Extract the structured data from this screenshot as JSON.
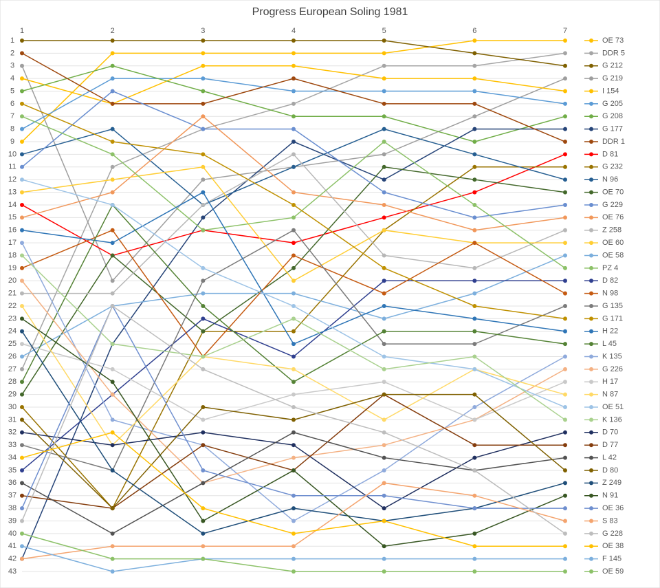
{
  "chart_data": {
    "type": "line",
    "title": "Progress European Soling 1981",
    "categories": [
      "1",
      "2",
      "3",
      "4",
      "5",
      "6",
      "7"
    ],
    "ylim": [
      1,
      43
    ],
    "y_reversed": true,
    "grid": true,
    "legend": "right",
    "yticks": [
      1,
      2,
      3,
      4,
      5,
      6,
      7,
      8,
      9,
      10,
      11,
      12,
      13,
      14,
      15,
      16,
      17,
      18,
      19,
      20,
      21,
      22,
      23,
      24,
      25,
      26,
      27,
      28,
      29,
      30,
      31,
      32,
      33,
      34,
      35,
      36,
      37,
      38,
      39,
      40,
      41,
      42,
      43
    ],
    "series": [
      {
        "name": "OE 73",
        "color": "#FFC000",
        "values": [
          9,
          2,
          2,
          2,
          2,
          1,
          1
        ]
      },
      {
        "name": "DDR 5",
        "color": "#A5A5A5",
        "values": [
          27,
          11,
          8,
          6,
          3,
          3,
          2
        ]
      },
      {
        "name": "G 212",
        "color": "#7F6000",
        "values": [
          1,
          1,
          1,
          1,
          1,
          2,
          3
        ]
      },
      {
        "name": "G 219",
        "color": "#9E9E9E",
        "values": [
          3,
          20,
          12,
          11,
          10,
          7,
          4
        ]
      },
      {
        "name": "I 154",
        "color": "#FFC000",
        "values": [
          4,
          6,
          3,
          3,
          4,
          4,
          5
        ]
      },
      {
        "name": "G 205",
        "color": "#5B9BD5",
        "values": [
          8,
          4,
          4,
          5,
          5,
          5,
          6
        ]
      },
      {
        "name": "G 208",
        "color": "#70AD47",
        "values": [
          5,
          3,
          5,
          7,
          7,
          9,
          7
        ]
      },
      {
        "name": "G 177",
        "color": "#264478",
        "values": [
          42,
          25,
          15,
          9,
          12,
          8,
          8
        ]
      },
      {
        "name": "DDR 1",
        "color": "#9E480E",
        "values": [
          2,
          6,
          6,
          4,
          6,
          6,
          9
        ]
      },
      {
        "name": "D 81",
        "color": "#FF0000",
        "values": [
          14,
          18,
          16,
          17,
          15,
          13,
          10
        ]
      },
      {
        "name": "G 232",
        "color": "#997300",
        "values": [
          30,
          38,
          24,
          24,
          16,
          11,
          11
        ]
      },
      {
        "name": "N 96",
        "color": "#255E91",
        "values": [
          10,
          8,
          14,
          11,
          8,
          10,
          12
        ]
      },
      {
        "name": "OE 70",
        "color": "#43682B",
        "values": [
          29,
          18,
          24,
          19,
          11,
          12,
          13
        ]
      },
      {
        "name": "G 229",
        "color": "#698ED0",
        "values": [
          11,
          5,
          8,
          8,
          13,
          15,
          14
        ]
      },
      {
        "name": "OE 76",
        "color": "#F1975A",
        "values": [
          15,
          13,
          7,
          13,
          14,
          16,
          15
        ]
      },
      {
        "name": "Z 258",
        "color": "#B7B7B7",
        "values": [
          21,
          21,
          14,
          10,
          18,
          19,
          16
        ]
      },
      {
        "name": "OE 60",
        "color": "#FFCD33",
        "values": [
          13,
          12,
          11,
          20,
          16,
          17,
          17
        ]
      },
      {
        "name": "OE 58",
        "color": "#7CAFDD",
        "values": [
          26,
          22,
          21,
          21,
          23,
          21,
          18
        ]
      },
      {
        "name": "PZ 4",
        "color": "#8CC168",
        "values": [
          7,
          10,
          16,
          15,
          9,
          14,
          19
        ]
      },
      {
        "name": "D 82",
        "color": "#2F3F8F",
        "values": [
          35,
          29,
          23,
          26,
          20,
          20,
          20
        ]
      },
      {
        "name": "N 98",
        "color": "#C55A11",
        "values": [
          19,
          16,
          26,
          18,
          21,
          17,
          21
        ]
      },
      {
        "name": "G 135",
        "color": "#7B7B7B",
        "values": [
          33,
          35,
          20,
          16,
          25,
          25,
          22
        ]
      },
      {
        "name": "G 171",
        "color": "#BF9000",
        "values": [
          6,
          9,
          10,
          14,
          19,
          22,
          23
        ]
      },
      {
        "name": "H 22",
        "color": "#2E75B6",
        "values": [
          16,
          17,
          13,
          25,
          22,
          23,
          24
        ]
      },
      {
        "name": "L 45",
        "color": "#548235",
        "values": [
          28,
          14,
          22,
          28,
          24,
          24,
          25
        ]
      },
      {
        "name": "K 135",
        "color": "#8FAADC",
        "values": [
          17,
          31,
          33,
          39,
          35,
          30,
          26
        ]
      },
      {
        "name": "G 226",
        "color": "#F4B183",
        "values": [
          20,
          29,
          36,
          34,
          33,
          31,
          27
        ]
      },
      {
        "name": "H 17",
        "color": "#C9C9C9",
        "values": [
          25,
          27,
          31,
          29,
          28,
          31,
          28
        ]
      },
      {
        "name": "N 87",
        "color": "#FFD966",
        "values": [
          22,
          33,
          26,
          27,
          31,
          27,
          29
        ]
      },
      {
        "name": "OE 51",
        "color": "#9DC3E6",
        "values": [
          12,
          14,
          19,
          22,
          26,
          27,
          30
        ]
      },
      {
        "name": "K 136",
        "color": "#A9D18E",
        "values": [
          18,
          25,
          26,
          23,
          27,
          26,
          31
        ]
      },
      {
        "name": "D 70",
        "color": "#1F2F5F",
        "values": [
          32,
          33,
          32,
          33,
          38,
          34,
          32
        ]
      },
      {
        "name": "D 77",
        "color": "#843C0C",
        "values": [
          37,
          38,
          33,
          35,
          29,
          33,
          33
        ]
      },
      {
        "name": "L 42",
        "color": "#525252",
        "values": [
          36,
          40,
          36,
          32,
          34,
          35,
          34
        ]
      },
      {
        "name": "D 80",
        "color": "#7F6000",
        "values": [
          31,
          38,
          30,
          31,
          29,
          29,
          35
        ]
      },
      {
        "name": "Z 249",
        "color": "#1F4E79",
        "values": [
          24,
          35,
          40,
          38,
          39,
          38,
          36
        ]
      },
      {
        "name": "N 91",
        "color": "#385723",
        "values": [
          23,
          28,
          39,
          35,
          41,
          40,
          37
        ]
      },
      {
        "name": "OE 36",
        "color": "#6F8FCF",
        "values": [
          38,
          22,
          35,
          37,
          37,
          38,
          38
        ]
      },
      {
        "name": "S 83",
        "color": "#F4A46E",
        "values": [
          42,
          41,
          41,
          41,
          36,
          37,
          39
        ]
      },
      {
        "name": "G 228",
        "color": "#BDBDBD",
        "values": [
          39,
          22,
          27,
          30,
          32,
          35,
          40
        ]
      },
      {
        "name": "OE 38",
        "color": "#FFC000",
        "values": [
          34,
          32,
          38,
          40,
          39,
          41,
          41
        ]
      },
      {
        "name": "F 145",
        "color": "#7CAFDD",
        "values": [
          41,
          43,
          42,
          42,
          42,
          42,
          42
        ]
      },
      {
        "name": "OE 59",
        "color": "#8CC168",
        "values": [
          40,
          42,
          42,
          43,
          43,
          43,
          43
        ]
      }
    ]
  }
}
